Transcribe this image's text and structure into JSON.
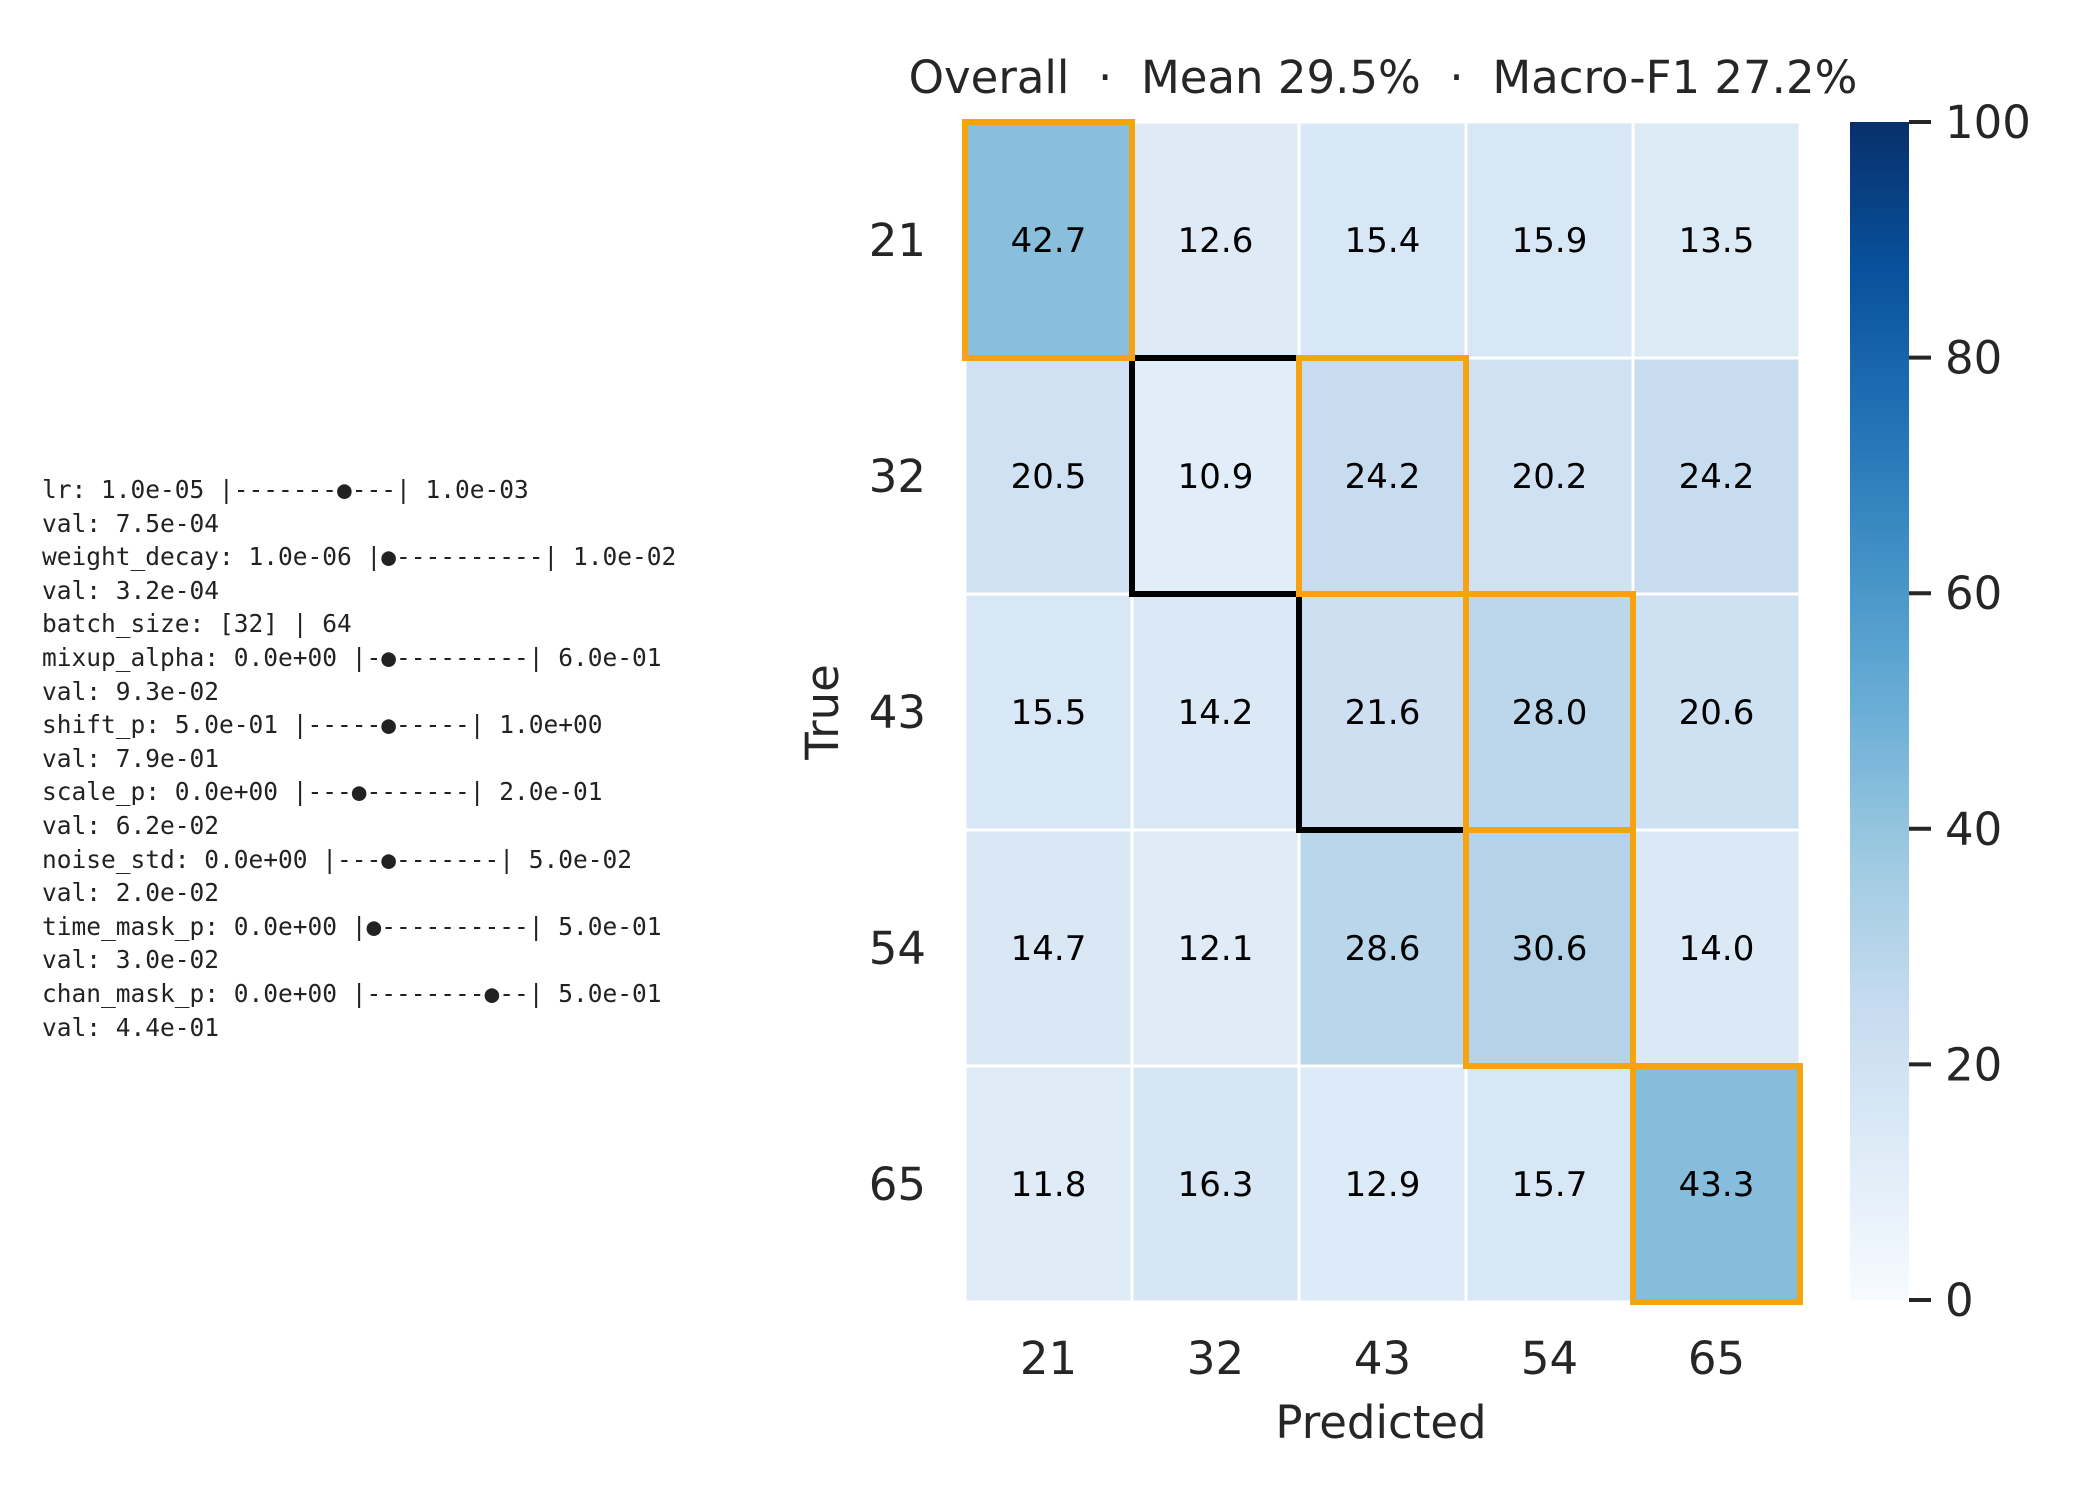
{
  "hyperparams": [
    "lr: 1.0e-05 |-------●---| 1.0e-03",
    "val: 7.5e-04",
    "weight_decay: 1.0e-06 |●----------| 1.0e-02",
    "val: 3.2e-04",
    "batch_size: [32] | 64",
    "mixup_alpha: 0.0e+00 |-●---------| 6.0e-01",
    "val: 9.3e-02",
    "shift_p: 5.0e-01 |-----●-----| 1.0e+00",
    "val: 7.9e-01",
    "scale_p: 0.0e+00 |---●-------| 2.0e-01",
    "val: 6.2e-02",
    "noise_std: 0.0e+00 |---●-------| 5.0e-02",
    "val: 2.0e-02",
    "time_mask_p: 0.0e+00 |●----------| 5.0e-01",
    "val: 3.0e-02",
    "chan_mask_p: 0.0e+00 |--------●--| 5.0e-01",
    "val: 4.4e-01"
  ],
  "chart_data": {
    "type": "heatmap",
    "title": "Overall  ·  Mean 29.5%  ·  Macro-F1 27.2%",
    "xlabel": "Predicted",
    "ylabel": "True",
    "x_categories": [
      "21",
      "32",
      "43",
      "54",
      "65"
    ],
    "y_categories": [
      "21",
      "32",
      "43",
      "54",
      "65"
    ],
    "values": [
      [
        42.7,
        12.6,
        15.4,
        15.9,
        13.5
      ],
      [
        20.5,
        10.9,
        24.2,
        20.2,
        24.2
      ],
      [
        15.5,
        14.2,
        21.6,
        28.0,
        20.6
      ],
      [
        14.7,
        12.1,
        28.6,
        30.6,
        14.0
      ],
      [
        11.8,
        16.3,
        12.9,
        15.7,
        43.3
      ]
    ],
    "value_format": "0.1f",
    "colormap": "Blues",
    "vmin": 0,
    "vmax": 100,
    "colorbar_ticks": [
      0,
      20,
      40,
      60,
      80,
      100
    ],
    "highlight_orange": [
      [
        0,
        0
      ],
      [
        1,
        2
      ],
      [
        2,
        3
      ],
      [
        3,
        3
      ],
      [
        4,
        4
      ]
    ],
    "highlight_black": [
      [
        1,
        1
      ],
      [
        2,
        2
      ]
    ],
    "colors": {
      "orange": "#f5a30f",
      "black": "#000000",
      "grid": "#ffffff",
      "text": "#262626"
    }
  }
}
